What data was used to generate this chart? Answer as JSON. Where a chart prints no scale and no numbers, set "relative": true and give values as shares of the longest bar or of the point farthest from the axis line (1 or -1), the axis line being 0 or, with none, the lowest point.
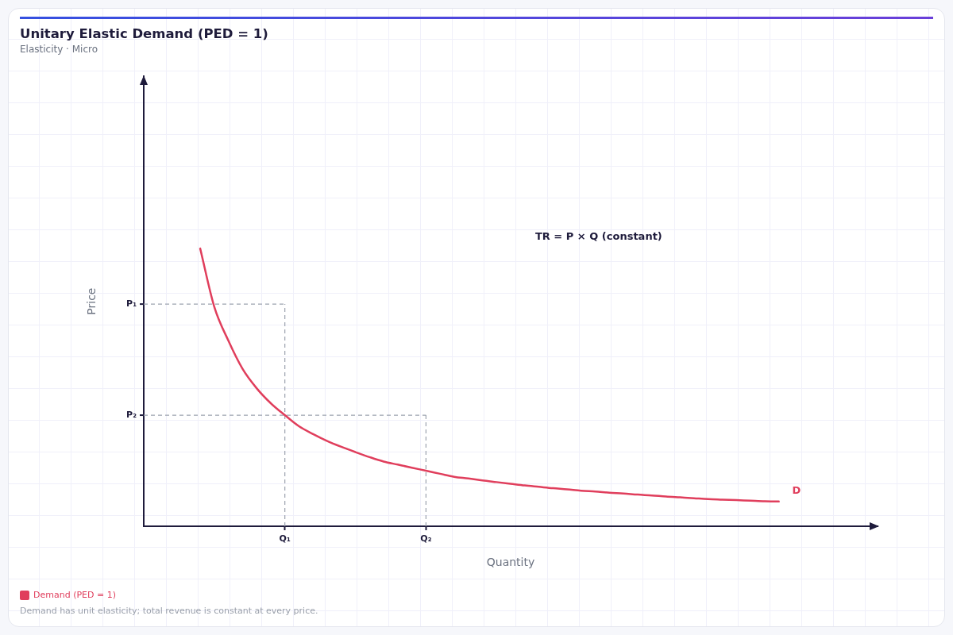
{
  "chart_data": {
    "type": "line",
    "title": "Unitary Elastic Demand (PED = 1)",
    "subtitle": "Elasticity · Micro",
    "xlabel": "Quantity",
    "ylabel": "Price",
    "relative": true,
    "categories": [
      null,
      null,
      null,
      null,
      null,
      null,
      null,
      null,
      null,
      null,
      "Q₁",
      null,
      null,
      null,
      null,
      null,
      null,
      null,
      null,
      null,
      "Q₂",
      null,
      null,
      null,
      null,
      null,
      null,
      null,
      null,
      null,
      null,
      null,
      null,
      null,
      null,
      null,
      null,
      null,
      null,
      null,
      null,
      null,
      null,
      null,
      null,
      null,
      null,
      null,
      null,
      null,
      null,
      null,
      null
    ],
    "series": [
      {
        "name": "Demand (PED = 1)",
        "color": "#e03e5c",
        "values": [
          null,
          null,
          null,
          null,
          1.0,
          0.79,
          0.668,
          0.567,
          0.497,
          0.443,
          0.4,
          0.36,
          0.332,
          0.307,
          0.286,
          0.267,
          0.249,
          0.233,
          0.222,
          0.211,
          0.2,
          0.189,
          0.178,
          0.172,
          0.165,
          0.159,
          0.153,
          0.147,
          0.142,
          0.137,
          0.133,
          0.128,
          0.125,
          0.121,
          0.118,
          0.114,
          0.111,
          0.107,
          0.104,
          0.101,
          0.098,
          0.096,
          0.094,
          0.092,
          0.09,
          0.089,
          null,
          null,
          null,
          null,
          null,
          null,
          null
        ]
      }
    ],
    "ref_lines": [
      {
        "axis": "y",
        "value": 0.8,
        "label": "P₁",
        "color": "#9ca3af",
        "line_style": "dashed"
      },
      {
        "axis": "x",
        "value": "Q₁",
        "color": "#9ca3af",
        "line_style": "dashed"
      },
      {
        "axis": "y",
        "value": 0.4,
        "label": "P₂",
        "color": "#9ca3af",
        "line_style": "dashed"
      },
      {
        "axis": "x",
        "value": "Q₂",
        "color": "#9ca3af",
        "line_style": "dashed"
      }
    ],
    "marker": "none",
    "legend": "bottom left",
    "annotations": [
      "TR = P × Q (constant)",
      "D",
      "Demand has unit elasticity; total revenue is constant at every price."
    ]
  }
}
